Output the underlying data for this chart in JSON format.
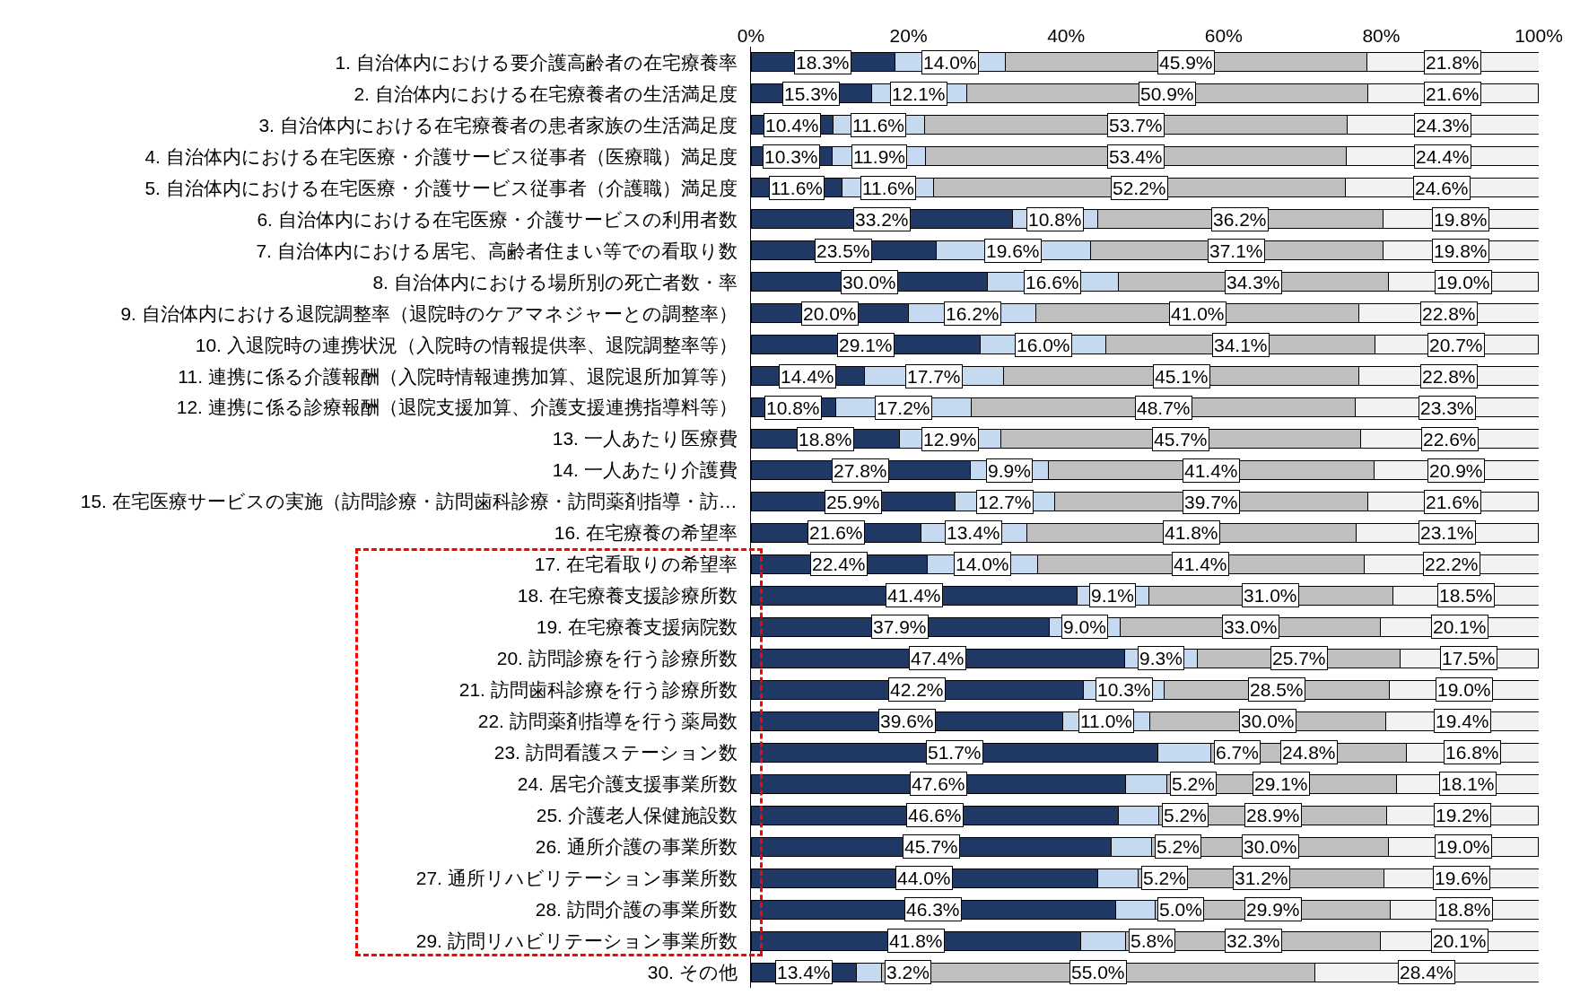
{
  "chart_data": {
    "type": "bar",
    "orientation": "horizontal",
    "stacked": true,
    "grid": false,
    "categories": [
      "1. 自治体内における要介護高齢者の在宅療養率",
      "2. 自治体内における在宅療養者の生活満足度",
      "3. 自治体内における在宅療養者の患者家族の生活満足度",
      "4. 自治体内における在宅医療・介護サービス従事者（医療職）満足度",
      "5. 自治体内における在宅医療・介護サービス従事者（介護職）満足度",
      "6. 自治体内における在宅医療・介護サービスの利用者数",
      "7. 自治体内における居宅、高齢者住まい等での看取り数",
      "8. 自治体内における場所別の死亡者数・率",
      "9. 自治体内における退院調整率（退院時のケアマネジャーとの調整率）",
      "10. 入退院時の連携状況（入院時の情報提供率、退院調整率等）",
      "11. 連携に係る介護報酬（入院時情報連携加算、退院退所加算等）",
      "12. 連携に係る診療報酬（退院支援加算、介護支援連携指導料等）",
      "13. 一人あたり医療費",
      "14. 一人あたり介護費",
      "15. 在宅医療サービスの実施（訪問診療・訪問歯科診療・訪問薬剤指導・訪…",
      "16. 在宅療養の希望率",
      "17. 在宅看取りの希望率",
      "18. 在宅療養支援診療所数",
      "19. 在宅療養支援病院数",
      "20. 訪問診療を行う診療所数",
      "21. 訪問歯科診療を行う診療所数",
      "22. 訪問薬剤指導を行う薬局数",
      "23. 訪問看護ステーション数",
      "24. 居宅介護支援事業所数",
      "25. 介護老人保健施設数",
      "26. 通所介護の事業所数",
      "27. 通所リハビリテーション事業所数",
      "28. 訪問介護の事業所数",
      "29. 訪問リハビリテーション事業所数",
      "30. その他"
    ],
    "xlim": [
      0,
      100
    ],
    "xticks": [
      {
        "value": 0,
        "label": "0%"
      },
      {
        "value": 20,
        "label": "20%"
      },
      {
        "value": 40,
        "label": "40%"
      },
      {
        "value": 60,
        "label": "60%"
      },
      {
        "value": 80,
        "label": "80%"
      },
      {
        "value": 100,
        "label": "100%"
      }
    ],
    "series": [
      {
        "color": "#203864",
        "values": [
          18.3,
          15.3,
          10.4,
          10.3,
          11.6,
          33.2,
          23.5,
          30.0,
          20.0,
          29.1,
          14.4,
          10.8,
          18.8,
          27.8,
          25.9,
          21.6,
          22.4,
          41.4,
          37.9,
          47.4,
          42.2,
          39.6,
          51.7,
          47.6,
          46.6,
          45.7,
          44.0,
          46.3,
          41.8,
          13.4
        ],
        "value_labels": [
          "18.3%",
          "15.3%",
          "10.4%",
          "10.3%",
          "11.6%",
          "33.2%",
          "23.5%",
          "30.0%",
          "20.0%",
          "29.1%",
          "14.4%",
          "10.8%",
          "18.8%",
          "27.8%",
          "25.9%",
          "21.6%",
          "22.4%",
          "41.4%",
          "37.9%",
          "47.4%",
          "42.2%",
          "39.6%",
          "51.7%",
          "47.6%",
          "46.6%",
          "45.7%",
          "44.0%",
          "46.3%",
          "41.8%",
          "13.4%"
        ]
      },
      {
        "color": "#c5d9f1",
        "values": [
          14.0,
          12.1,
          11.6,
          11.9,
          11.6,
          10.8,
          19.6,
          16.6,
          16.2,
          16.0,
          17.7,
          17.2,
          12.9,
          9.9,
          12.7,
          13.4,
          14.0,
          9.1,
          9.0,
          9.3,
          10.3,
          11.0,
          6.7,
          5.2,
          5.2,
          5.2,
          5.2,
          5.0,
          5.8,
          3.2
        ],
        "value_labels": [
          "14.0%",
          "12.1%",
          "11.6%",
          "11.9%",
          "11.6%",
          "10.8%",
          "19.6%",
          "16.6%",
          "16.2%",
          "16.0%",
          "17.7%",
          "17.2%",
          "12.9%",
          "9.9%",
          "12.7%",
          "13.4%",
          "14.0%",
          "9.1%",
          "9.0%",
          "9.3%",
          "10.3%",
          "11.0%",
          "6.7%",
          "5.2%",
          "5.2%",
          "5.2%",
          "5.2%",
          "5.0%",
          "5.8%",
          "3.2%"
        ]
      },
      {
        "color": "#bfbfbf",
        "values": [
          45.9,
          50.9,
          53.7,
          53.4,
          52.2,
          36.2,
          37.1,
          34.3,
          41.0,
          34.1,
          45.1,
          48.7,
          45.7,
          41.4,
          39.7,
          41.8,
          41.4,
          31.0,
          33.0,
          25.7,
          28.5,
          30.0,
          24.8,
          29.1,
          28.9,
          30.0,
          31.2,
          29.9,
          32.3,
          55.0
        ],
        "value_labels": [
          "45.9%",
          "50.9%",
          "53.7%",
          "53.4%",
          "52.2%",
          "36.2%",
          "37.1%",
          "34.3%",
          "41.0%",
          "34.1%",
          "45.1%",
          "48.7%",
          "45.7%",
          "41.4%",
          "39.7%",
          "41.8%",
          "41.4%",
          "31.0%",
          "33.0%",
          "25.7%",
          "28.5%",
          "30.0%",
          "24.8%",
          "29.1%",
          "28.9%",
          "30.0%",
          "31.2%",
          "29.9%",
          "32.3%",
          "55.0%"
        ]
      },
      {
        "color": "#f2f2f2",
        "values": [
          21.8,
          21.6,
          24.3,
          24.4,
          24.6,
          19.8,
          19.8,
          19.0,
          22.8,
          20.7,
          22.8,
          23.3,
          22.6,
          20.9,
          21.6,
          23.1,
          22.2,
          18.5,
          20.1,
          17.5,
          19.0,
          19.4,
          16.8,
          18.1,
          19.2,
          19.0,
          19.6,
          18.8,
          20.1,
          28.4
        ],
        "value_labels": [
          "21.8%",
          "21.6%",
          "24.3%",
          "24.4%",
          "24.6%",
          "19.8%",
          "19.8%",
          "19.0%",
          "22.8%",
          "20.7%",
          "22.8%",
          "23.3%",
          "22.6%",
          "20.9%",
          "21.6%",
          "23.1%",
          "22.2%",
          "18.5%",
          "20.1%",
          "17.5%",
          "19.0%",
          "19.4%",
          "16.8%",
          "18.1%",
          "19.2%",
          "19.0%",
          "19.6%",
          "18.8%",
          "20.1%",
          "28.4%"
        ]
      }
    ]
  }
}
